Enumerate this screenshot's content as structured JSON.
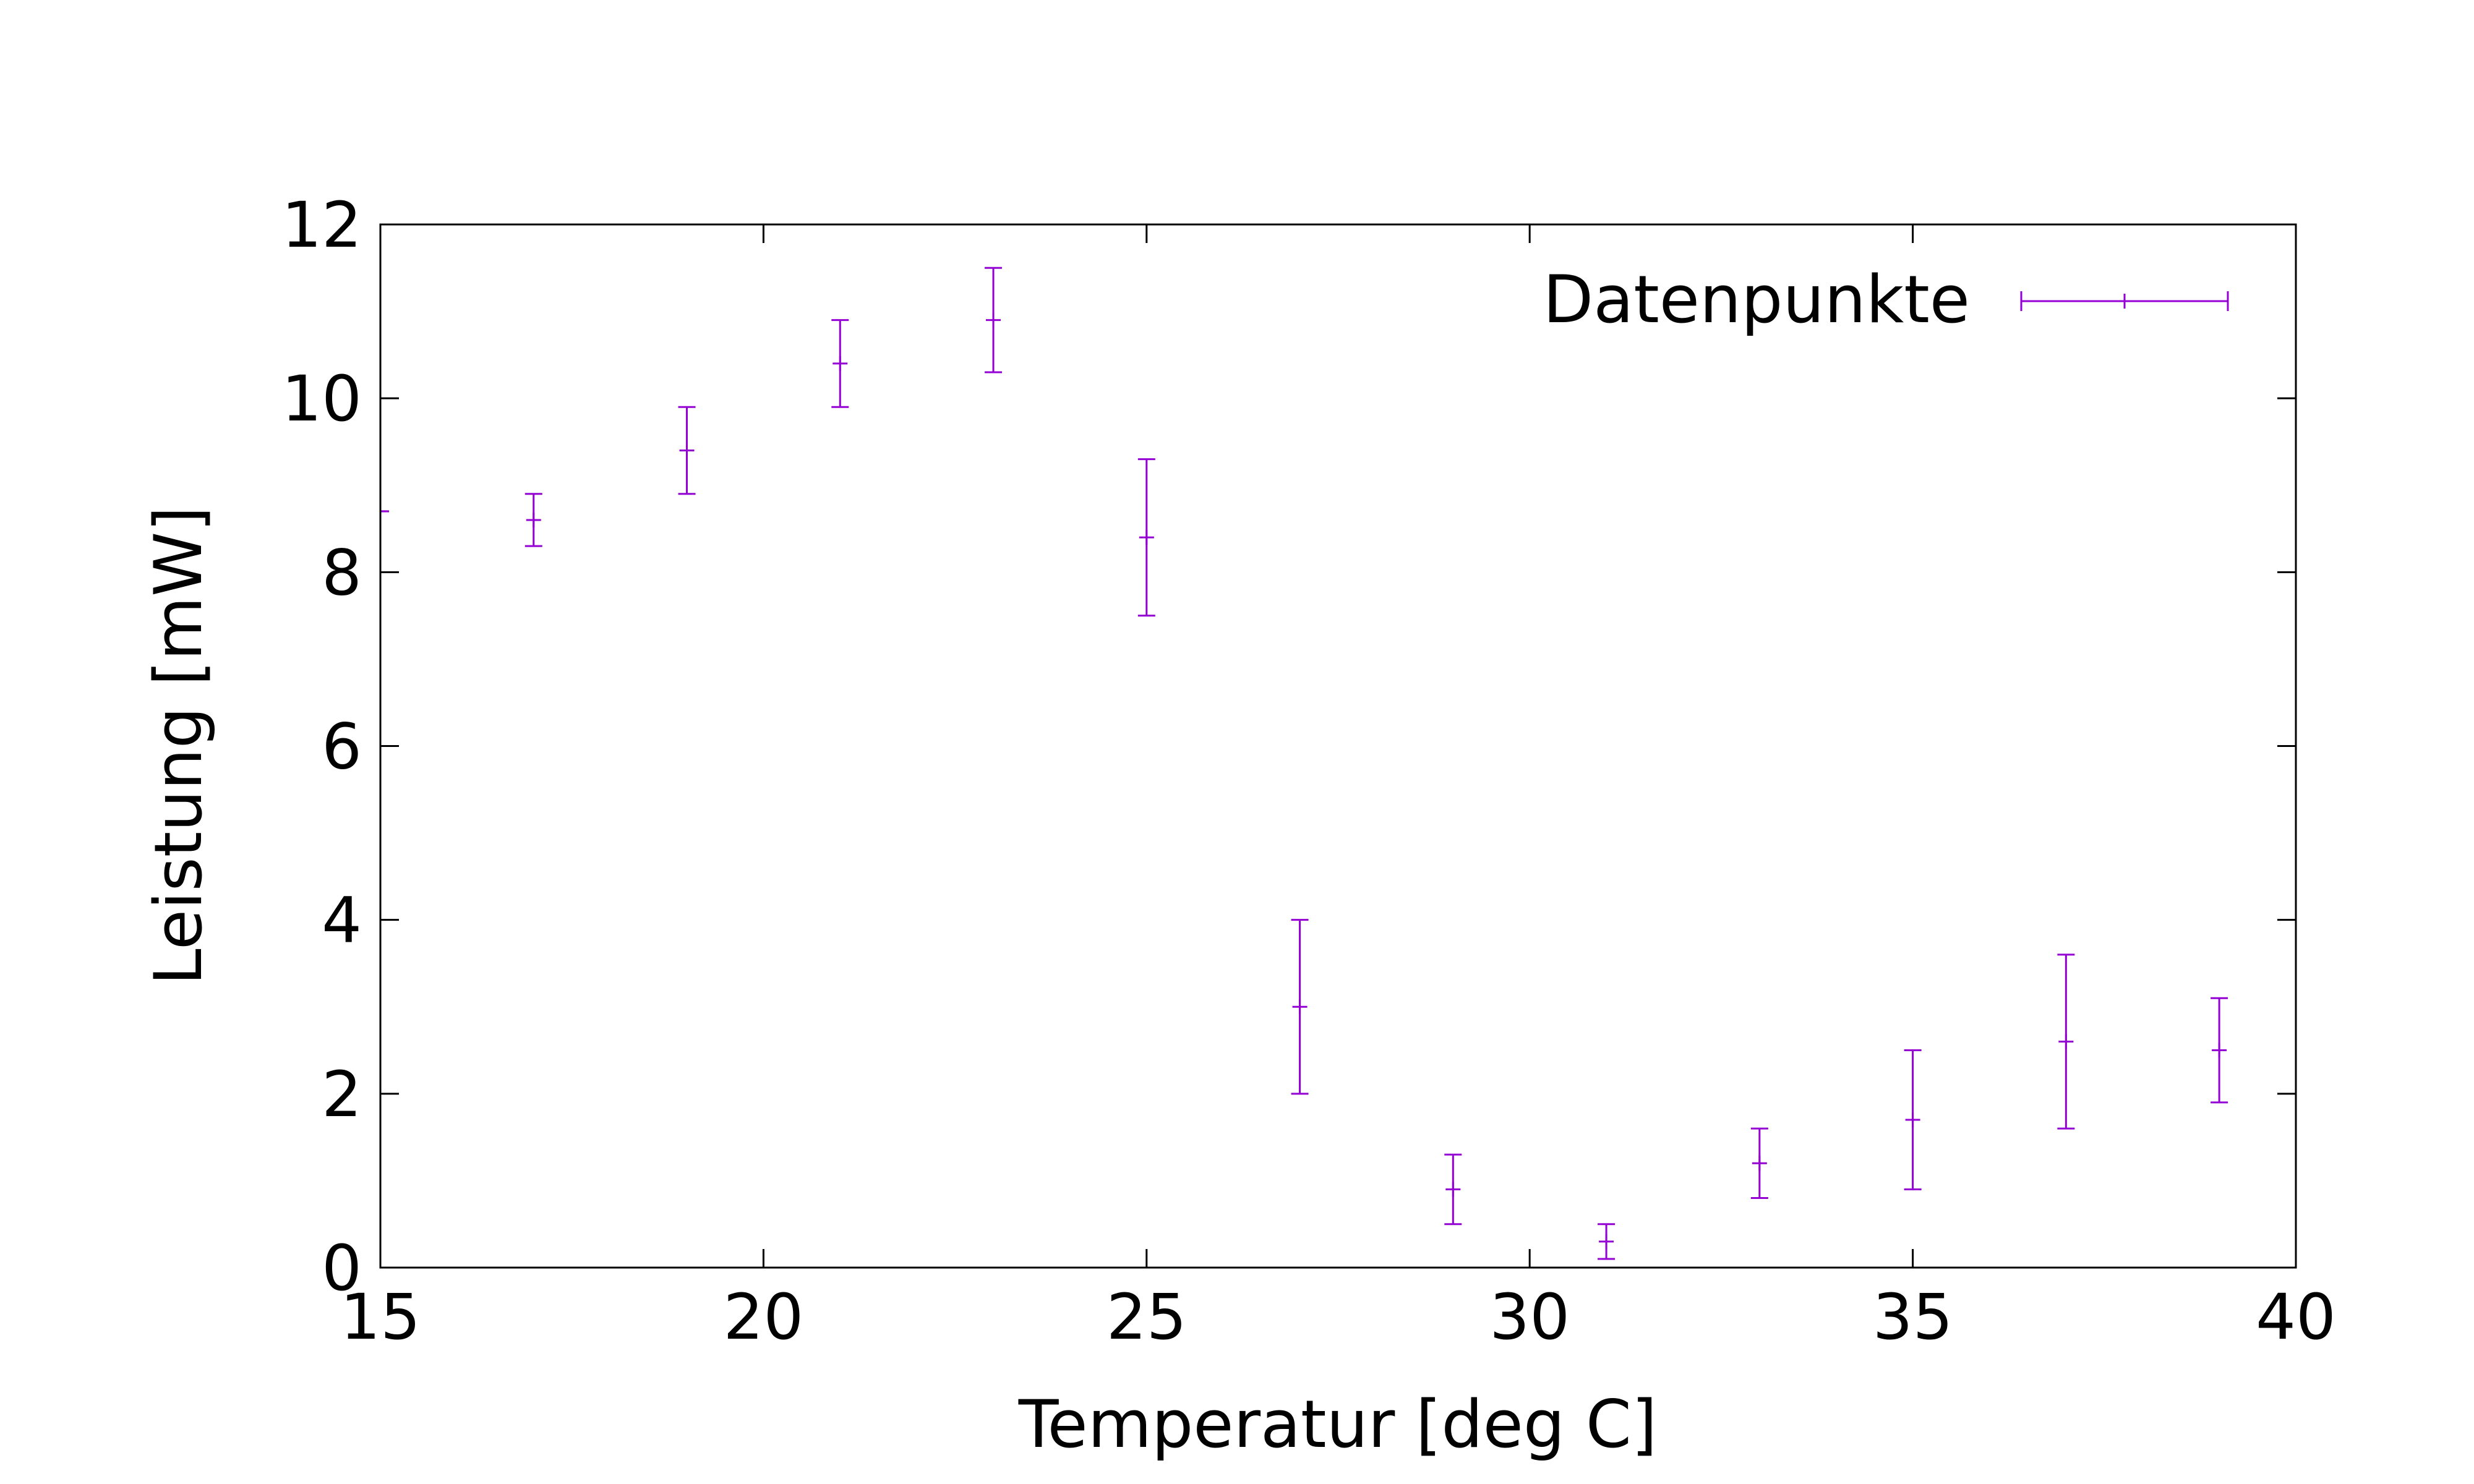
{
  "chart_data": {
    "type": "scatter",
    "xlabel": "Temperatur [deg C]",
    "ylabel": "Leistung [mW]",
    "xlim": [
      15,
      40
    ],
    "ylim": [
      0,
      12
    ],
    "x_ticks": [
      15,
      20,
      25,
      30,
      35,
      40
    ],
    "y_ticks": [
      0,
      2,
      4,
      6,
      8,
      10,
      12
    ],
    "x_tick_labels": [
      "15",
      "20",
      "25",
      "30",
      "35",
      "40"
    ],
    "y_tick_labels": [
      "0",
      "2",
      "4",
      "6",
      "8",
      "10",
      "12"
    ],
    "grid": false,
    "legend_position": "top-right",
    "series": [
      {
        "name": "Datenpunkte",
        "color": "#9400d3",
        "style": "error-bars",
        "points": [
          {
            "x": 15,
            "y": 8.7,
            "ylow": 8.7,
            "yhigh": 8.7
          },
          {
            "x": 17,
            "y": 8.6,
            "ylow": 8.3,
            "yhigh": 8.9
          },
          {
            "x": 19,
            "y": 9.4,
            "ylow": 8.9,
            "yhigh": 9.9
          },
          {
            "x": 21,
            "y": 10.4,
            "ylow": 9.9,
            "yhigh": 10.9
          },
          {
            "x": 23,
            "y": 10.9,
            "ylow": 10.3,
            "yhigh": 11.5
          },
          {
            "x": 25,
            "y": 8.4,
            "ylow": 7.5,
            "yhigh": 9.3
          },
          {
            "x": 27,
            "y": 3.0,
            "ylow": 2.0,
            "yhigh": 4.0
          },
          {
            "x": 29,
            "y": 0.9,
            "ylow": 0.5,
            "yhigh": 1.3
          },
          {
            "x": 31,
            "y": 0.3,
            "ylow": 0.1,
            "yhigh": 0.5
          },
          {
            "x": 33,
            "y": 1.2,
            "ylow": 0.8,
            "yhigh": 1.6
          },
          {
            "x": 35,
            "y": 1.7,
            "ylow": 0.9,
            "yhigh": 2.5
          },
          {
            "x": 37,
            "y": 2.6,
            "ylow": 1.6,
            "yhigh": 3.6
          },
          {
            "x": 39,
            "y": 2.5,
            "ylow": 1.9,
            "yhigh": 3.1
          }
        ]
      }
    ]
  }
}
